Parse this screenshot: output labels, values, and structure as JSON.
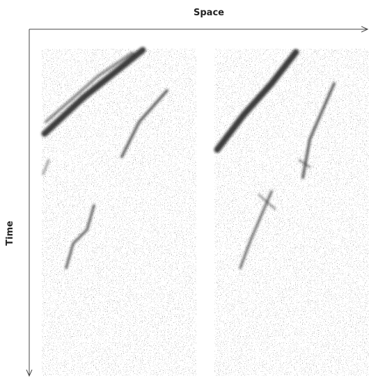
{
  "axes": {
    "x_label": "Space",
    "y_label": "Time"
  }
}
